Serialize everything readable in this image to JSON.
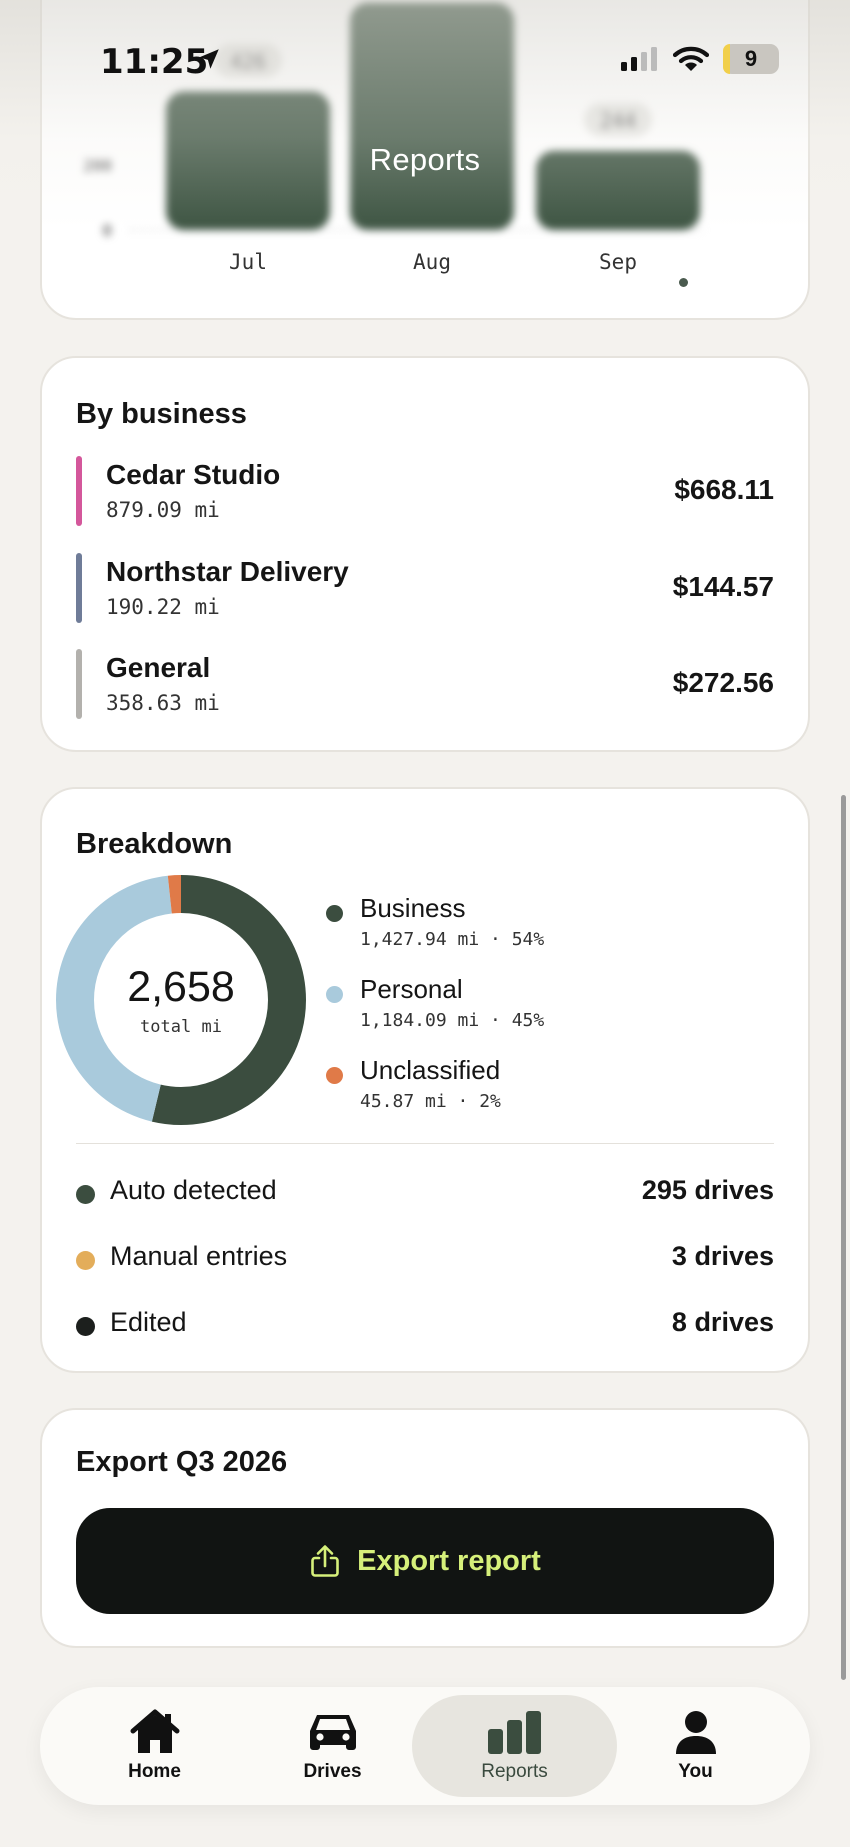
{
  "status_bar": {
    "time": "11:25",
    "battery": "9"
  },
  "header": {
    "title": "Reports"
  },
  "monthly_chart": {
    "chart_data": {
      "type": "bar",
      "categories": [
        "Jul",
        "Aug",
        "Sep"
      ],
      "values": [
        426,
        700,
        244
      ],
      "data_labels": [
        "426",
        "",
        "244"
      ],
      "ytick_labels": [
        "0",
        "200"
      ],
      "selected_category": "Sep",
      "colors": {
        "bar": "#3e5543"
      }
    }
  },
  "by_business": {
    "title": "By business",
    "items": [
      {
        "name": "Cedar Studio",
        "miles": "879.09 mi",
        "amount": "$668.11",
        "color": "#d4579b"
      },
      {
        "name": "Northstar Delivery",
        "miles": "190.22 mi",
        "amount": "$144.57",
        "color": "#6f7c98"
      },
      {
        "name": "General",
        "miles": "358.63 mi",
        "amount": "$272.56",
        "color": "#b3b1ad"
      }
    ]
  },
  "breakdown": {
    "title": "Breakdown",
    "total": "2,658",
    "total_unit": "total mi",
    "segments": [
      {
        "label": "Business",
        "detail": "1,427.94 mi · 54%",
        "value": 1427.94,
        "color": "#3b4d3f"
      },
      {
        "label": "Personal",
        "detail": "1,184.09 mi · 45%",
        "value": 1184.09,
        "color": "#a9cadc"
      },
      {
        "label": "Unclassified",
        "detail": "45.87 mi · 2%",
        "value": 45.87,
        "color": "#e07a48"
      }
    ],
    "stats": [
      {
        "label": "Auto detected",
        "value": "295 drives",
        "color": "#3b4d3f"
      },
      {
        "label": "Manual entries",
        "value": "3 drives",
        "color": "#e3ad5a"
      },
      {
        "label": "Edited",
        "value": "8 drives",
        "color": "#1c1f1d"
      }
    ]
  },
  "export": {
    "title": "Export Q3 2026",
    "button_label": "Export report",
    "icon": "share-icon"
  },
  "tabbar": {
    "active": "Reports",
    "tabs": [
      {
        "label": "Home",
        "icon": "home-icon"
      },
      {
        "label": "Drives",
        "icon": "car-icon"
      },
      {
        "label": "Reports",
        "icon": "bar-chart-icon"
      },
      {
        "label": "You",
        "icon": "person-icon"
      }
    ]
  }
}
